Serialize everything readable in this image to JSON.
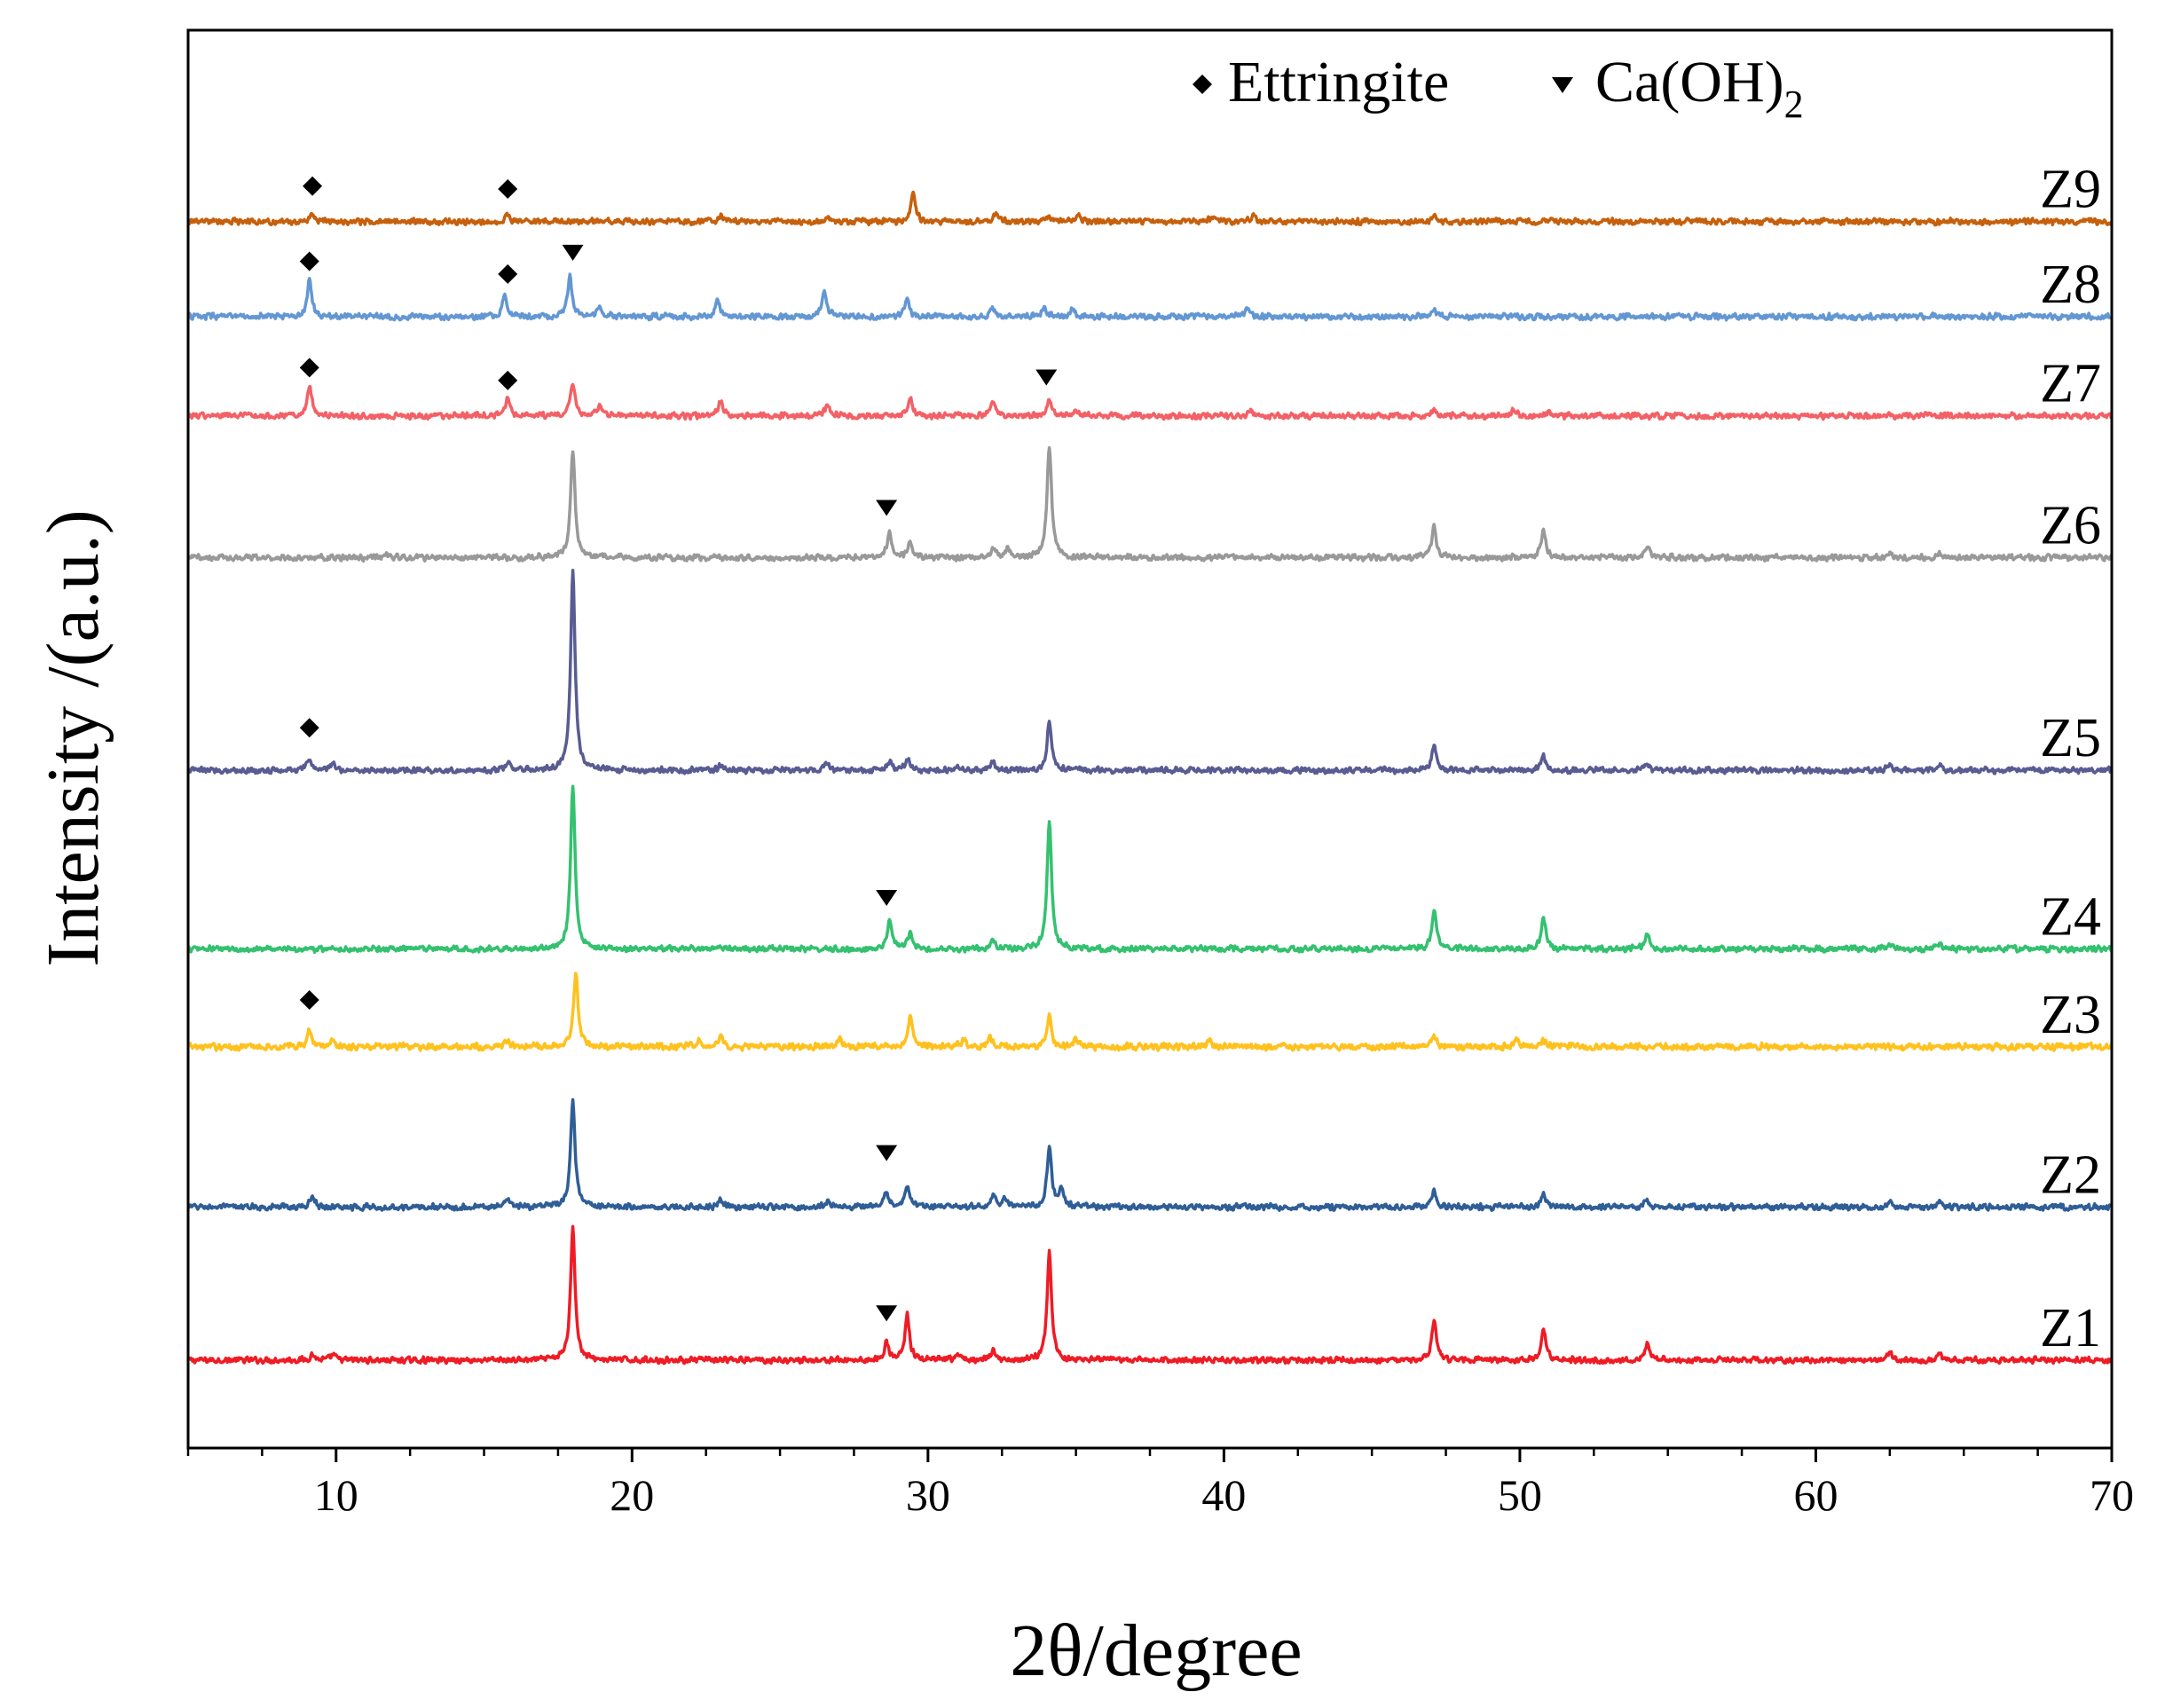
{
  "chart_data": {
    "type": "line",
    "title": "",
    "xlabel": "2θ/degree",
    "ylabel": "Intensity /(a.u.)",
    "xlim": [
      5,
      70
    ],
    "ylim": [
      0,
      100
    ],
    "x_ticks": [
      10,
      20,
      30,
      40,
      50,
      60,
      70
    ],
    "x_minor_step": 2.5,
    "grid": false,
    "legend": {
      "position": "top-right",
      "entries": [
        {
          "marker": "diamond",
          "label": "Ettringite"
        },
        {
          "marker": "triangle-down",
          "label": "Ca(OH)",
          "subscript": "2"
        }
      ]
    },
    "series": [
      {
        "name": "Z1",
        "color": "#EE1C25",
        "baseline": 6.2,
        "noise": 0.25,
        "peaks": [
          [
            9.2,
            0.4
          ],
          [
            9.9,
            0.4
          ],
          [
            18.0,
            9.5
          ],
          [
            28.6,
            1.2
          ],
          [
            29.3,
            3.2
          ],
          [
            31.0,
            0.4
          ],
          [
            32.2,
            0.6
          ],
          [
            34.1,
            7.6
          ],
          [
            47.1,
            2.9
          ],
          [
            50.8,
            2.3
          ],
          [
            54.3,
            1.1
          ],
          [
            62.5,
            0.5
          ],
          [
            64.2,
            0.4
          ]
        ],
        "markers": [
          {
            "type": "triangle-down",
            "x": 28.6,
            "y": 9.5
          }
        ]
      },
      {
        "name": "Z2",
        "color": "#2F5E97",
        "baseline": 17.0,
        "noise": 0.25,
        "peaks": [
          [
            9.2,
            0.8
          ],
          [
            15.8,
            0.5
          ],
          [
            18.0,
            7.4
          ],
          [
            23.0,
            0.5
          ],
          [
            26.6,
            0.4
          ],
          [
            28.6,
            1.0
          ],
          [
            29.3,
            1.5
          ],
          [
            32.2,
            0.8
          ],
          [
            32.6,
            0.6
          ],
          [
            34.1,
            4.3
          ],
          [
            34.5,
            1.2
          ],
          [
            47.1,
            1.2
          ],
          [
            50.8,
            1.0
          ],
          [
            54.3,
            0.5
          ],
          [
            62.5,
            0.4
          ],
          [
            64.2,
            0.4
          ]
        ],
        "markers": [
          {
            "type": "triangle-down",
            "x": 28.6,
            "y": 20.8
          }
        ]
      },
      {
        "name": "Z3",
        "color": "#FFC11E",
        "baseline": 28.3,
        "noise": 0.28,
        "peaks": [
          [
            9.1,
            1.2
          ],
          [
            9.9,
            0.5
          ],
          [
            15.8,
            0.5
          ],
          [
            18.1,
            5.2
          ],
          [
            22.3,
            0.5
          ],
          [
            23.0,
            0.6
          ],
          [
            27.0,
            0.5
          ],
          [
            29.4,
            2.2
          ],
          [
            31.2,
            0.5
          ],
          [
            32.1,
            0.7
          ],
          [
            34.1,
            2.1
          ],
          [
            35.0,
            0.5
          ],
          [
            39.5,
            0.4
          ],
          [
            47.1,
            0.8
          ],
          [
            49.9,
            0.5
          ],
          [
            50.8,
            0.5
          ]
        ],
        "markers": [
          {
            "type": "diamond",
            "x": 9.1,
            "y": 31.6
          }
        ]
      },
      {
        "name": "Z4",
        "color": "#34C170",
        "baseline": 35.2,
        "noise": 0.25,
        "peaks": [
          [
            18.0,
            11.6
          ],
          [
            28.7,
            2.0
          ],
          [
            29.4,
            1.2
          ],
          [
            32.2,
            0.6
          ],
          [
            34.1,
            9.0
          ],
          [
            47.1,
            2.7
          ],
          [
            50.8,
            2.2
          ],
          [
            54.3,
            1.0
          ],
          [
            62.5,
            0.4
          ],
          [
            64.2,
            0.4
          ]
        ],
        "markers": [
          {
            "type": "triangle-down",
            "x": 28.6,
            "y": 38.8
          }
        ]
      },
      {
        "name": "Z5",
        "color": "#595C92",
        "baseline": 47.8,
        "noise": 0.25,
        "peaks": [
          [
            9.1,
            0.8
          ],
          [
            9.9,
            0.5
          ],
          [
            15.8,
            0.5
          ],
          [
            18.0,
            14.0
          ],
          [
            23.0,
            0.4
          ],
          [
            26.6,
            0.5
          ],
          [
            28.7,
            0.6
          ],
          [
            29.3,
            0.8
          ],
          [
            31.0,
            0.4
          ],
          [
            32.2,
            0.6
          ],
          [
            34.1,
            3.4
          ],
          [
            47.1,
            1.8
          ],
          [
            50.8,
            1.0
          ],
          [
            54.3,
            0.5
          ],
          [
            62.5,
            0.4
          ],
          [
            64.2,
            0.4
          ]
        ],
        "markers": [
          {
            "type": "diamond",
            "x": 9.1,
            "y": 50.8
          }
        ]
      },
      {
        "name": "Z6",
        "color": "#999999",
        "baseline": 62.8,
        "noise": 0.25,
        "peaks": [
          [
            11.7,
            0.3
          ],
          [
            18.0,
            7.4
          ],
          [
            28.7,
            1.9
          ],
          [
            29.4,
            1.1
          ],
          [
            32.2,
            0.6
          ],
          [
            32.7,
            0.7
          ],
          [
            34.1,
            7.9
          ],
          [
            47.1,
            2.2
          ],
          [
            50.8,
            2.0
          ],
          [
            54.3,
            0.9
          ],
          [
            62.5,
            0.4
          ],
          [
            64.2,
            0.3
          ]
        ],
        "markers": [
          {
            "type": "triangle-down",
            "x": 28.6,
            "y": 66.3
          }
        ]
      },
      {
        "name": "Z7",
        "color": "#F36166",
        "baseline": 72.8,
        "noise": 0.25,
        "peaks": [
          [
            9.1,
            2.2
          ],
          [
            15.8,
            1.3
          ],
          [
            18.0,
            2.4
          ],
          [
            18.9,
            0.7
          ],
          [
            23.0,
            1.0
          ],
          [
            26.6,
            0.9
          ],
          [
            29.4,
            1.2
          ],
          [
            32.2,
            1.1
          ],
          [
            34.1,
            1.0
          ],
          [
            35.0,
            0.4
          ],
          [
            40.9,
            0.4
          ],
          [
            47.1,
            0.4
          ],
          [
            49.8,
            0.4
          ],
          [
            51.0,
            0.3
          ]
        ],
        "markers": [
          {
            "type": "diamond",
            "x": 9.1,
            "y": 76.2
          },
          {
            "type": "diamond",
            "x": 15.8,
            "y": 75.3
          },
          {
            "type": "triangle-down",
            "x": 34.0,
            "y": 75.5
          }
        ]
      },
      {
        "name": "Z8",
        "color": "#6397D3",
        "baseline": 79.8,
        "noise": 0.25,
        "peaks": [
          [
            9.1,
            2.5
          ],
          [
            15.7,
            1.5
          ],
          [
            17.9,
            2.8
          ],
          [
            18.9,
            0.8
          ],
          [
            22.9,
            1.1
          ],
          [
            26.5,
            1.8
          ],
          [
            29.3,
            1.1
          ],
          [
            32.2,
            0.6
          ],
          [
            33.9,
            0.6
          ],
          [
            34.9,
            0.6
          ],
          [
            40.8,
            0.5
          ],
          [
            47.1,
            0.4
          ]
        ],
        "markers": [
          {
            "type": "diamond",
            "x": 9.1,
            "y": 83.7
          },
          {
            "type": "diamond",
            "x": 15.8,
            "y": 82.8
          },
          {
            "type": "triangle-down",
            "x": 18.0,
            "y": 84.3
          }
        ]
      },
      {
        "name": "Z9",
        "color": "#C6600C",
        "baseline": 86.5,
        "noise": 0.25,
        "peaks": [
          [
            9.2,
            0.5
          ],
          [
            15.8,
            0.4
          ],
          [
            23.0,
            0.5
          ],
          [
            26.6,
            0.4
          ],
          [
            29.5,
            2.0
          ],
          [
            32.3,
            0.5
          ],
          [
            34.1,
            0.4
          ],
          [
            35.1,
            0.4
          ],
          [
            39.6,
            0.3
          ],
          [
            41.0,
            0.4
          ],
          [
            47.1,
            0.4
          ]
        ],
        "markers": [
          {
            "type": "diamond",
            "x": 9.2,
            "y": 89.0
          },
          {
            "type": "diamond",
            "x": 15.8,
            "y": 88.8
          }
        ]
      }
    ]
  },
  "colors": {
    "axis": "#000000",
    "background": "#ffffff"
  }
}
